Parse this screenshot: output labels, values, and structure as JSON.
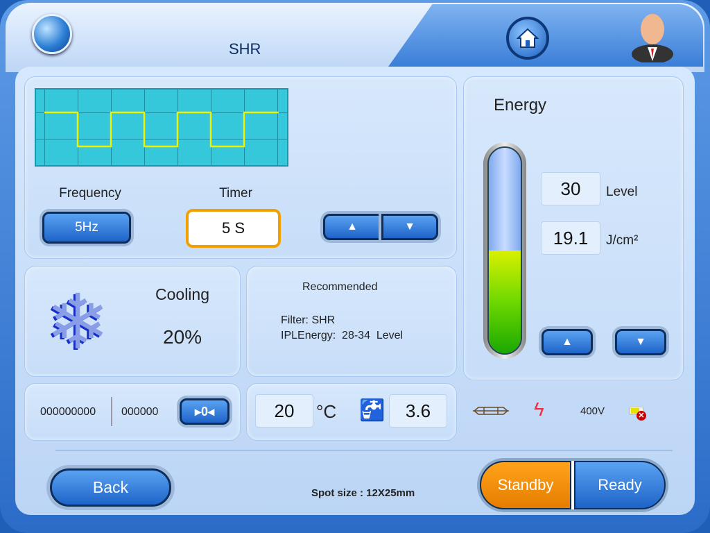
{
  "header": {
    "title": "SHR"
  },
  "pulse": {
    "frequency_label": "Frequency",
    "frequency_value": "5Hz",
    "timer_label": "Timer",
    "timer_value": "5 S"
  },
  "energy": {
    "title": "Energy",
    "level": "30",
    "level_unit": "Level",
    "fluence": "19.1",
    "fluence_unit": "J/cm²",
    "fill_fraction": 0.5
  },
  "cooling": {
    "label": "Cooling",
    "value": "20%"
  },
  "recommended": {
    "title": "Recommended",
    "filter": "Filter: SHR",
    "energy": "IPLEnergy:  28-34  Level"
  },
  "counters": {
    "total": "000000000",
    "session": "000000",
    "reset_label": "▸0◂"
  },
  "status": {
    "temperature": "20",
    "temp_unit": "°C",
    "flow": "3.6",
    "voltage": "400V"
  },
  "footer": {
    "back": "Back",
    "spot_size": "Spot size : 12X25mm",
    "standby": "Standby",
    "ready": "Ready"
  },
  "colors": {
    "accent": "#1e64c8",
    "standby": "#f08c00",
    "wave": "#35c7da",
    "wave_line": "#f2f200"
  }
}
